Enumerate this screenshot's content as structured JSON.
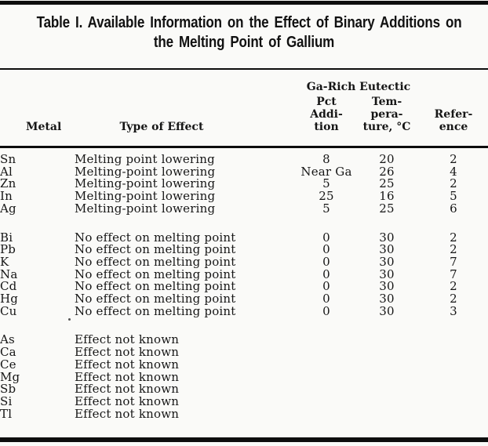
{
  "title": {
    "line1": "Table I. Available Information on the Effect of Binary Additions on",
    "line2": "the Melting Point of Gallium"
  },
  "table": {
    "group_header": "Ga-Rich Eutectic",
    "columns": {
      "metal": "Metal",
      "effect": "Type of Effect",
      "pct": [
        "Pct",
        "Addi-",
        "tion"
      ],
      "temp": [
        "Tem-",
        "pera-",
        "ture, °C"
      ],
      "ref": [
        "Refer-",
        "ence"
      ]
    },
    "groups": [
      {
        "rows": [
          {
            "metal": "Sn",
            "effect": "Melting point lowering",
            "pct": "8",
            "temp": "20",
            "ref": "2"
          },
          {
            "metal": "Al",
            "effect": "Melting-point lowering",
            "pct": "Near Ga",
            "temp": "26",
            "ref": "4"
          },
          {
            "metal": "Zn",
            "effect": "Melting-point lowering",
            "pct": "5",
            "temp": "25",
            "ref": "2"
          },
          {
            "metal": "In",
            "effect": "Melting-point lowering",
            "pct": "25",
            "temp": "16",
            "ref": "5"
          },
          {
            "metal": "Ag",
            "effect": "Melting-point lowering",
            "pct": "5",
            "temp": "25",
            "ref": "6"
          }
        ]
      },
      {
        "rows": [
          {
            "metal": "Bi",
            "effect": "No effect on melting point",
            "pct": "0",
            "temp": "30",
            "ref": "2"
          },
          {
            "metal": "Pb",
            "effect": "No effect on melting point",
            "pct": "0",
            "temp": "30",
            "ref": "2"
          },
          {
            "metal": "K",
            "effect": "No effect on melting point",
            "pct": "0",
            "temp": "30",
            "ref": "7"
          },
          {
            "metal": "Na",
            "effect": "No effect on melting point",
            "pct": "0",
            "temp": "30",
            "ref": "7"
          },
          {
            "metal": "Cd",
            "effect": "No effect on melting point",
            "pct": "0",
            "temp": "30",
            "ref": "2"
          },
          {
            "metal": "Hg",
            "effect": "No effect on melting point",
            "pct": "0",
            "temp": "30",
            "ref": "2"
          },
          {
            "metal": "Cu",
            "effect": "No effect on melting point",
            "pct": "0",
            "temp": "30",
            "ref": "3"
          }
        ]
      },
      {
        "rows": [
          {
            "metal": "As",
            "effect": "Effect not known"
          },
          {
            "metal": "Ca",
            "effect": "Effect not known"
          },
          {
            "metal": "Ce",
            "effect": "Effect not known"
          },
          {
            "metal": "Mg",
            "effect": "Effect not known"
          },
          {
            "metal": "Sb",
            "effect": "Effect not known"
          },
          {
            "metal": "Si",
            "effect": "Effect not known"
          },
          {
            "metal": "Tl",
            "effect": "Effect not known"
          }
        ]
      }
    ]
  }
}
